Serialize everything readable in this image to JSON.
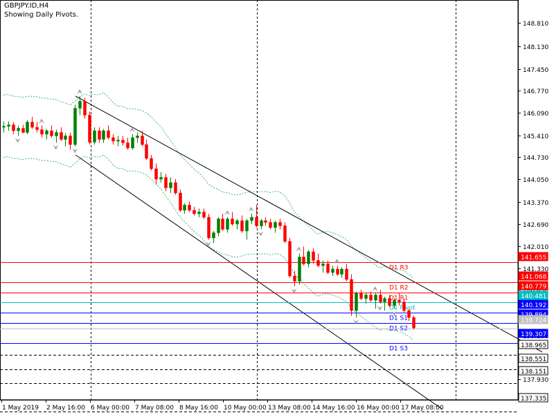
{
  "header": {
    "symbol_line": "GBPJPY.ID,H4",
    "indicator_line": "Showing Daily Pivots."
  },
  "chart_data": {
    "type": "candlestick",
    "symbol": "GBPJPY.ID",
    "timeframe": "H4",
    "subtitle": "Showing Daily Pivots.",
    "ylim": [
      137.335,
      149.23
    ],
    "grid": false,
    "y_ticks": [
      "148.810",
      "148.130",
      "147.450",
      "146.770",
      "146.090",
      "145.410",
      "144.730",
      "144.050",
      "143.370",
      "142.690",
      "142.010",
      "141.330",
      "140.650",
      "139.970",
      "139.290",
      "138.610",
      "137.930"
    ],
    "x_ticks": [
      "1 May 2019",
      "2 May 16:00",
      "6 May 00:00",
      "7 May 08:00",
      "8 May 16:00",
      "10 May 00:00",
      "13 May 08:00",
      "14 May 16:00",
      "16 May 00:00",
      "17 May 08:00"
    ],
    "day_separators": [
      "6 May 00:00",
      "10 May 00:00",
      "17 May 08:00"
    ],
    "pivot_levels": [
      {
        "name": "D1 R3",
        "value": 141.655,
        "color": "#ff0000",
        "style": "solid"
      },
      {
        "name": "D1 R2",
        "value": 141.068,
        "color": "#ff0000",
        "style": "solid"
      },
      {
        "name": "D1 R1",
        "value": 140.779,
        "color": "#ff0000",
        "style": "solid"
      },
      {
        "name": "D1 Pivot",
        "value": 140.481,
        "color": "#00bfbf",
        "style": "solid"
      },
      {
        "name": "D1 S1",
        "value": 140.192,
        "color": "#0000ff",
        "style": "solid"
      },
      {
        "name": "D1 S2",
        "value": 139.894,
        "color": "#0000ff",
        "style": "solid"
      },
      {
        "name": "D1 S3",
        "value": 139.307,
        "color": "#0000ff",
        "style": "solid"
      }
    ],
    "current_price": {
      "value": 139.724,
      "color": "#c0c0c0"
    },
    "dashed_levels": [
      {
        "value": 138.965,
        "label": "138.965"
      },
      {
        "value": 138.551,
        "label": "138.551"
      },
      {
        "value": 138.151,
        "label": "138.151"
      },
      {
        "value": 137.335,
        "label": "137.335"
      }
    ],
    "candles": [
      [
        145.55,
        145.72,
        145.4,
        145.58
      ],
      [
        145.58,
        145.72,
        145.45,
        145.62
      ],
      [
        145.62,
        145.7,
        145.35,
        145.45
      ],
      [
        145.45,
        145.6,
        145.3,
        145.52
      ],
      [
        145.52,
        145.62,
        145.38,
        145.4
      ],
      [
        145.4,
        145.75,
        145.35,
        145.7
      ],
      [
        145.7,
        145.85,
        145.5,
        145.55
      ],
      [
        145.55,
        145.7,
        145.4,
        145.48
      ],
      [
        145.48,
        145.6,
        145.25,
        145.35
      ],
      [
        145.35,
        145.5,
        145.2,
        145.45
      ],
      [
        145.45,
        145.6,
        145.25,
        145.3
      ],
      [
        145.3,
        145.48,
        145.1,
        145.4
      ],
      [
        145.4,
        145.55,
        145.15,
        145.2
      ],
      [
        145.2,
        145.38,
        145.0,
        145.3
      ],
      [
        145.3,
        145.4,
        144.9,
        145.05
      ],
      [
        145.05,
        146.2,
        145.0,
        146.1
      ],
      [
        146.1,
        146.45,
        145.9,
        146.3
      ],
      [
        146.3,
        146.4,
        145.8,
        145.9
      ],
      [
        145.9,
        146.0,
        145.05,
        145.12
      ],
      [
        145.12,
        145.55,
        145.05,
        145.45
      ],
      [
        145.45,
        145.55,
        145.1,
        145.2
      ],
      [
        145.2,
        145.5,
        145.1,
        145.45
      ],
      [
        145.45,
        145.6,
        145.2,
        145.25
      ],
      [
        145.25,
        145.35,
        145.05,
        145.15
      ],
      [
        145.15,
        145.3,
        145.0,
        145.18
      ],
      [
        145.18,
        145.3,
        145.02,
        145.1
      ],
      [
        145.1,
        145.25,
        144.9,
        144.95
      ],
      [
        144.95,
        145.35,
        144.9,
        145.25
      ],
      [
        145.25,
        145.4,
        145.1,
        145.3
      ],
      [
        145.3,
        145.45,
        145.0,
        145.05
      ],
      [
        145.05,
        145.2,
        144.6,
        144.65
      ],
      [
        144.65,
        144.75,
        144.3,
        144.35
      ],
      [
        144.35,
        144.5,
        143.9,
        144.05
      ],
      [
        144.05,
        144.25,
        143.95,
        144.1
      ],
      [
        144.1,
        144.2,
        143.7,
        143.8
      ],
      [
        143.8,
        144.1,
        143.65,
        143.95
      ],
      [
        143.95,
        144.05,
        143.6,
        143.65
      ],
      [
        143.65,
        143.75,
        143.1,
        143.15
      ],
      [
        143.15,
        143.35,
        143.05,
        143.3
      ],
      [
        143.3,
        143.4,
        143.1,
        143.15
      ],
      [
        143.15,
        143.25,
        143.0,
        143.05
      ],
      [
        143.05,
        143.2,
        142.95,
        143.1
      ],
      [
        143.1,
        143.2,
        142.9,
        142.95
      ],
      [
        142.95,
        143.05,
        142.3,
        142.35
      ],
      [
        142.35,
        142.55,
        142.2,
        142.5
      ],
      [
        142.5,
        142.95,
        142.4,
        142.9
      ],
      [
        142.9,
        143.05,
        142.55,
        142.6
      ],
      [
        142.6,
        142.95,
        142.5,
        142.9
      ],
      [
        142.9,
        143.1,
        142.7,
        142.75
      ],
      [
        142.75,
        142.9,
        142.6,
        142.85
      ],
      [
        142.85,
        143.0,
        142.5,
        142.55
      ],
      [
        142.55,
        142.9,
        142.3,
        142.85
      ],
      [
        142.85,
        143.05,
        142.75,
        142.95
      ],
      [
        142.95,
        143.3,
        142.65,
        142.7
      ],
      [
        142.7,
        142.9,
        142.6,
        142.85
      ],
      [
        142.85,
        142.95,
        142.7,
        142.8
      ],
      [
        142.8,
        142.9,
        142.6,
        142.65
      ],
      [
        142.65,
        142.85,
        142.5,
        142.8
      ],
      [
        142.8,
        142.9,
        142.6,
        142.7
      ],
      [
        142.7,
        142.8,
        142.2,
        142.25
      ],
      [
        142.25,
        142.35,
        141.2,
        141.25
      ],
      [
        141.25,
        141.4,
        140.95,
        141.1
      ],
      [
        141.1,
        141.9,
        141.0,
        141.8
      ],
      [
        141.8,
        142.1,
        141.55,
        141.6
      ],
      [
        141.6,
        142.0,
        141.5,
        141.95
      ],
      [
        141.95,
        142.05,
        141.6,
        141.7
      ],
      [
        141.7,
        141.9,
        141.5,
        141.55
      ],
      [
        141.55,
        141.7,
        141.35,
        141.6
      ],
      [
        141.6,
        141.7,
        141.3,
        141.35
      ],
      [
        141.35,
        141.55,
        141.25,
        141.45
      ],
      [
        141.45,
        141.55,
        141.25,
        141.3
      ],
      [
        141.3,
        141.5,
        141.2,
        141.45
      ],
      [
        141.45,
        141.6,
        141.1,
        141.15
      ],
      [
        141.15,
        141.3,
        140.1,
        140.25
      ],
      [
        140.25,
        140.8,
        140.05,
        140.75
      ],
      [
        140.75,
        140.85,
        140.55,
        140.6
      ],
      [
        140.6,
        140.75,
        140.45,
        140.7
      ],
      [
        140.7,
        140.8,
        140.5,
        140.55
      ],
      [
        140.55,
        140.75,
        140.3,
        140.7
      ],
      [
        140.7,
        140.85,
        140.45,
        140.5
      ],
      [
        140.5,
        140.65,
        140.25,
        140.6
      ],
      [
        140.6,
        140.7,
        140.35,
        140.4
      ],
      [
        140.4,
        140.6,
        140.3,
        140.55
      ],
      [
        140.55,
        140.75,
        140.4,
        140.5
      ],
      [
        140.5,
        140.6,
        140.2,
        140.25
      ],
      [
        140.25,
        140.3,
        139.95,
        140.05
      ],
      [
        140.05,
        140.1,
        139.7,
        139.75
      ]
    ],
    "channel_lines": [
      {
        "from": [
          15,
          146.45
        ],
        "to": [
          100,
          139.05
        ]
      },
      {
        "from": [
          15,
          144.75
        ],
        "to": [
          79,
          137.4
        ]
      }
    ]
  },
  "price_scale": {
    "tick_labels": [
      "148.810",
      "148.130",
      "147.450",
      "146.770",
      "146.090",
      "145.410",
      "144.730",
      "144.050",
      "143.370",
      "142.690",
      "142.010",
      "141.330",
      "140.650",
      "139.970",
      "139.290",
      "138.610",
      "137.930"
    ],
    "highlight_labels": [
      {
        "text": "141.655",
        "bg": "#ff0000",
        "fg": "#ffffff"
      },
      {
        "text": "141.068",
        "bg": "#ff0000",
        "fg": "#ffffff"
      },
      {
        "text": "140.779",
        "bg": "#ff0000",
        "fg": "#ffffff"
      },
      {
        "text": "140.481",
        "bg": "#00bfbf",
        "fg": "#ffffff"
      },
      {
        "text": "140.192",
        "bg": "#0000ff",
        "fg": "#ffffff"
      },
      {
        "text": "139.894",
        "bg": "#0000ff",
        "fg": "#ffffff"
      },
      {
        "text": "139.724",
        "bg": "#c0c0c0",
        "fg": "#ffffff"
      },
      {
        "text": "139.307",
        "bg": "#0000ff",
        "fg": "#ffffff"
      },
      {
        "text": "138.965",
        "bg": "#ffffff",
        "fg": "#000000"
      },
      {
        "text": "138.551",
        "bg": "#ffffff",
        "fg": "#000000"
      },
      {
        "text": "138.151",
        "bg": "#ffffff",
        "fg": "#000000"
      },
      {
        "text": "137.335",
        "bg": "#ffffff",
        "fg": "#000000"
      }
    ]
  },
  "colors": {
    "bull": "#008000",
    "bear": "#ff0000",
    "channel": "#000000",
    "envelope": "#3cb371",
    "fractal": "#a0a0a0",
    "grid_dash": "#000000"
  }
}
